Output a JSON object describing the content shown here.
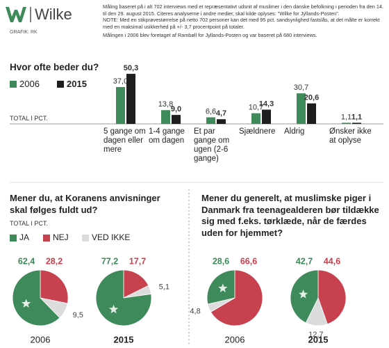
{
  "header": {
    "logo": "Wilke",
    "credit": "GRAFIK: RK",
    "notes": [
      "Måling baseret på i alt 702 interviews med et repræsentativt udsnit af muslimer i den danske befolkning i perioden fra den 14. til den 29. august 2015. Citeres analyserne i andre medier, skal kilde oplyses: ”Wilke for Jyllands-Posten”.",
      "NOTE: Med en stikprøvestørrelse på netto 702 personer kan det med 95 pct. sandsynlighed fastslås, at det målte er korrekt med en maksimal usikkerhed på +/- 3,7 procentpoint på totaler.",
      "Målingen i 2006 blev foretaget af Rambøll for Jyllands-Posten og var baseret på 680 interviews."
    ]
  },
  "chart_data": [
    {
      "type": "bar",
      "title": "Hvor ofte beder du?",
      "subtitle": "TOTAL I PCT.",
      "categories": [
        "5 gange om dagen eller mere",
        "1-4 gange om dagen",
        "Et par gange om ugen (2-6 gange)",
        "Sjældnere",
        "Aldrig",
        "Ønsker ikke at oplyse"
      ],
      "series": [
        {
          "name": "2006",
          "color": "#3f8a5a",
          "values": [
            37.0,
            13.8,
            6.6,
            10.7,
            30.7,
            1.1
          ],
          "value_labels": [
            "37,0",
            "13,8",
            "6,6",
            "10,7",
            "30,7",
            "1,1"
          ]
        },
        {
          "name": "2015",
          "color": "#1e1e1e",
          "values": [
            50.3,
            9.0,
            4.7,
            14.3,
            20.6,
            1.1
          ],
          "value_labels": [
            "50,3",
            "9,0",
            "4,7",
            "14,3",
            "20,6",
            "1,1"
          ]
        }
      ]
    },
    {
      "type": "pie",
      "title": "Mener du, at Koranens anvisninger skal følges fuldt ud?",
      "subtitle": "TOTAL I PCT.",
      "categories": [
        "JA",
        "NEJ",
        "VED IKKE"
      ],
      "colors": [
        "#3f8a5a",
        "#c8414e",
        "#dcdcdc"
      ],
      "pies": [
        {
          "label": "2006",
          "values": [
            62.4,
            28.2,
            9.5
          ],
          "value_labels": [
            "62,4",
            "28,2",
            "9,5"
          ]
        },
        {
          "label": "2015",
          "values": [
            77.2,
            17.7,
            5.1
          ],
          "value_labels": [
            "77,2",
            "17,7",
            "5,1"
          ]
        }
      ]
    },
    {
      "type": "pie",
      "title": "Mener du generelt, at muslimske piger i Danmark fra teenagealderen bør tildække sig med f.eks. tørklæde, når de færdes uden for hjemmet?",
      "colors": [
        "#3f8a5a",
        "#c8414e",
        "#dcdcdc"
      ],
      "pies": [
        {
          "label": "2006",
          "values": [
            28.6,
            66.6,
            4.8
          ],
          "value_labels": [
            "28,6",
            "66,6",
            "4,8"
          ]
        },
        {
          "label": "2015",
          "values": [
            42.7,
            44.6,
            12.7
          ],
          "value_labels": [
            "42,7",
            "44,6",
            "12,7"
          ]
        }
      ]
    }
  ]
}
